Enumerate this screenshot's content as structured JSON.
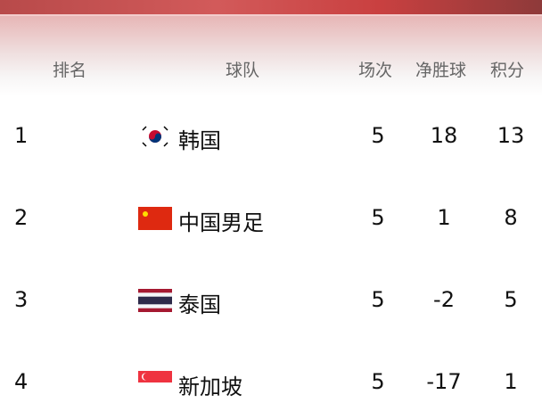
{
  "headers": {
    "rank": "排名",
    "team": "球队",
    "played": "场次",
    "goal_diff": "净胜球",
    "points": "积分"
  },
  "rows": [
    {
      "rank": "1",
      "flag": "south-korea-flag-icon",
      "team": "韩国",
      "played": "5",
      "goal_diff": "18",
      "points": "13"
    },
    {
      "rank": "2",
      "flag": "china-flag-icon",
      "team": "中国男足",
      "played": "5",
      "goal_diff": "1",
      "points": "8"
    },
    {
      "rank": "3",
      "flag": "thailand-flag-icon",
      "team": "泰国",
      "played": "5",
      "goal_diff": "-2",
      "points": "5"
    },
    {
      "rank": "4",
      "flag": "singapore-flag-icon",
      "team": "新加坡",
      "played": "5",
      "goal_diff": "-17",
      "points": "1"
    }
  ],
  "colors": {
    "header_red": "#c94040"
  }
}
